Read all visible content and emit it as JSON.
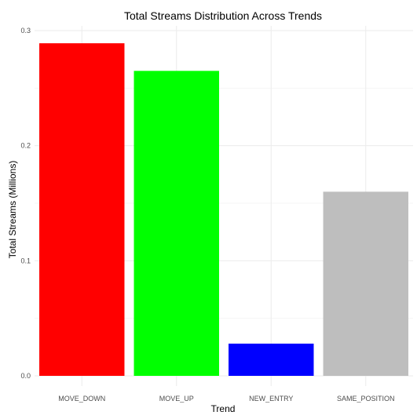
{
  "chart_data": {
    "type": "bar",
    "title": "Total Streams Distribution Across Trends",
    "xlabel": "Trend",
    "ylabel": "Total Streams (Millions)",
    "categories": [
      "MOVE_DOWN",
      "MOVE_UP",
      "NEW_ENTRY",
      "SAME_POSITION"
    ],
    "values": [
      0.289,
      0.265,
      0.028,
      0.16
    ],
    "colors": [
      "#ff0000",
      "#00ff00",
      "#0000ff",
      "#bebebe"
    ],
    "ylim": [
      0,
      0.3
    ],
    "yticks": [
      0.0,
      0.1,
      0.2,
      0.3
    ],
    "ytick_labels": [
      "0.0",
      "0.1",
      "0.2",
      "0.3"
    ],
    "grid": true,
    "legend": "none"
  }
}
